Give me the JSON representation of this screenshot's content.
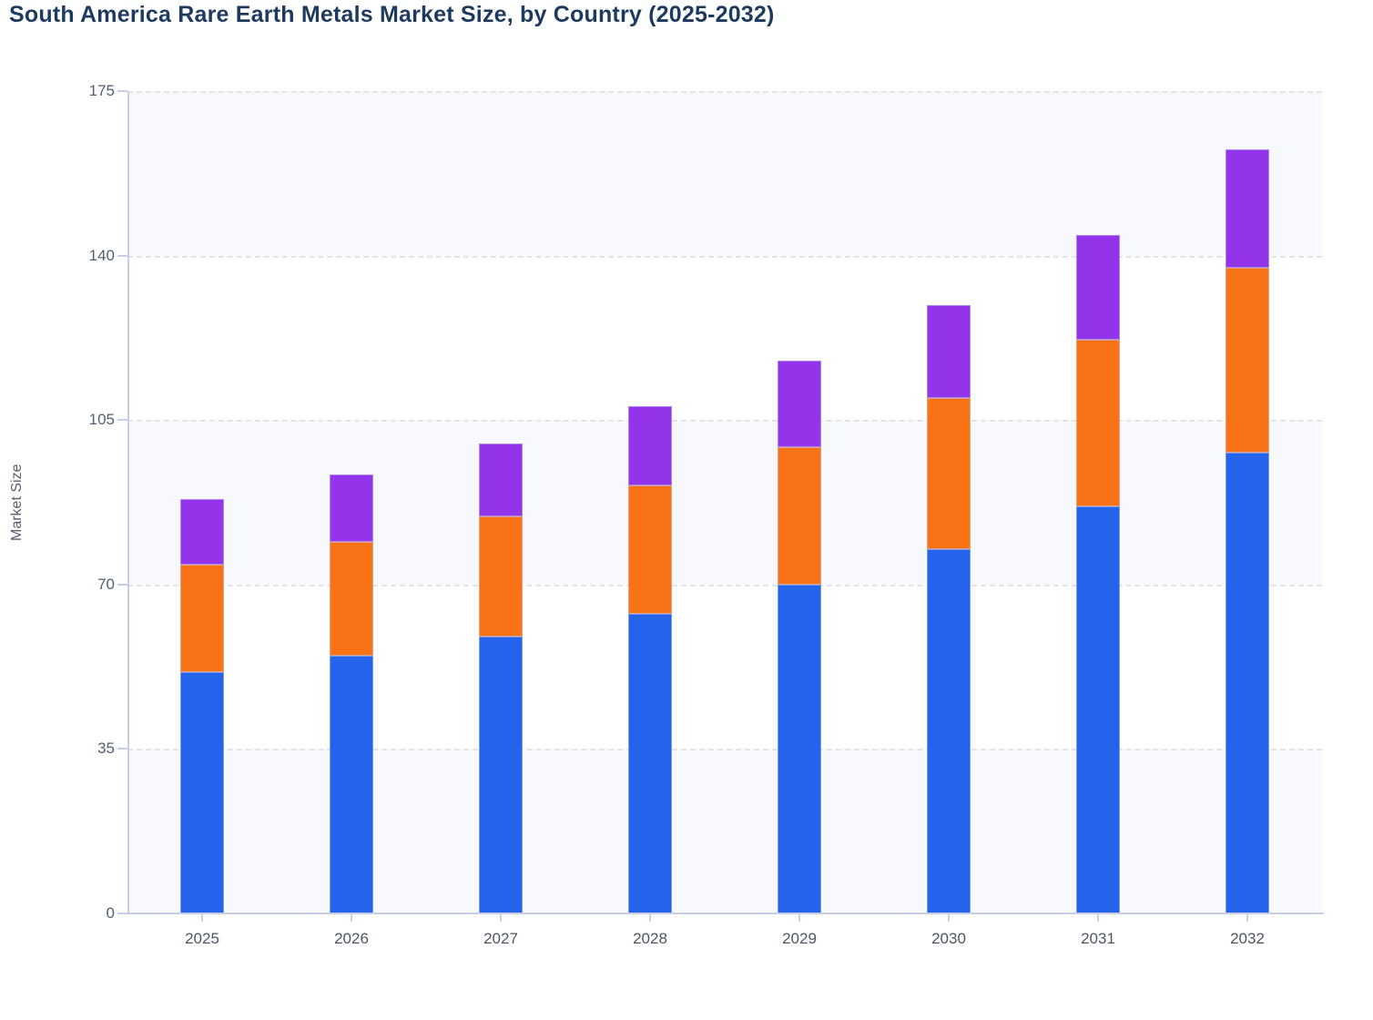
{
  "title": "South America Rare Earth Metals Market Size, by Country (2025-2032)",
  "y_axis": {
    "label": "Market Size",
    "ticks": [
      0,
      35,
      70,
      105,
      140,
      175
    ],
    "max": 175
  },
  "x_axis": {
    "categories": [
      "2025",
      "2026",
      "2027",
      "2028",
      "2029",
      "2030",
      "2031",
      "2032"
    ]
  },
  "chart_data": {
    "type": "bar",
    "stacked": true,
    "title": "South America Rare Earth Metals Market Size, by Country (2025-2032)",
    "xlabel": "",
    "ylabel": "Market Size",
    "ylim": [
      0,
      175
    ],
    "yticks": [
      0,
      35,
      70,
      105,
      140,
      175
    ],
    "grid": "horizontal-dashed",
    "legend": "none",
    "plot_background": "alternating horizontal bands",
    "categories": [
      "2025",
      "2026",
      "2027",
      "2028",
      "2029",
      "2030",
      "2031",
      "2032"
    ],
    "series": [
      {
        "name": "bottom-segment-blue",
        "color": "#2563eb",
        "values": [
          51.3,
          54.8,
          59.0,
          63.8,
          70.0,
          77.5,
          86.6,
          98.0
        ]
      },
      {
        "name": "middle-segment-orange",
        "color": "#f97316",
        "values": [
          22.9,
          24.2,
          25.5,
          27.3,
          29.3,
          32.1,
          35.4,
          39.5
        ]
      },
      {
        "name": "top-segment-purple",
        "color": "#9333ea",
        "values": [
          13.9,
          14.5,
          15.5,
          16.9,
          18.3,
          19.9,
          22.3,
          25.1
        ]
      }
    ],
    "stack_totals": [
      88.1,
      93.5,
      100.0,
      108.0,
      117.6,
      129.5,
      144.3,
      162.6
    ]
  },
  "style": {
    "title_color": "#1e3a5e",
    "axis_line_color": "#c8cdea",
    "gridline_color": "#e2e4ea",
    "band_color": "#f8f9fc",
    "y_tick_label_color": "#525f70",
    "x_tick_label_color": "#4b5563"
  }
}
